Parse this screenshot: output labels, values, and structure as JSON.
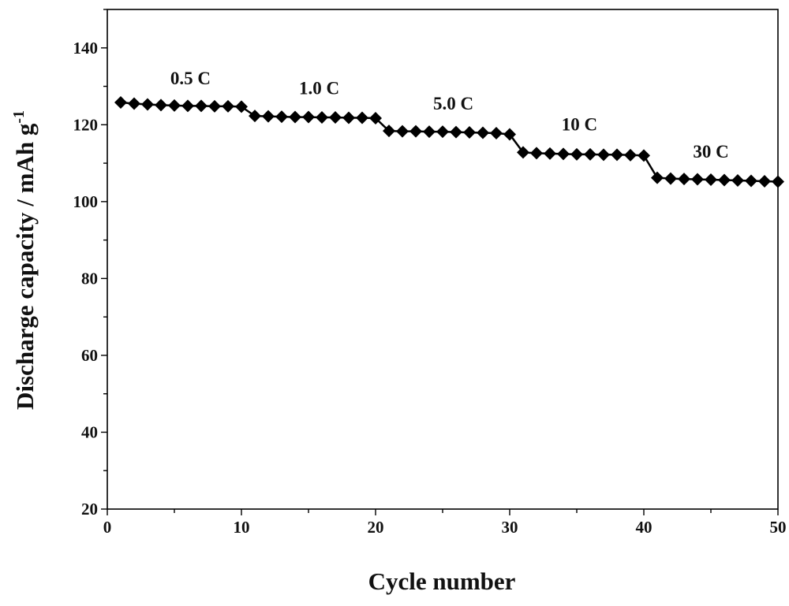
{
  "chart_data": {
    "type": "line",
    "xlabel": "Cycle number",
    "ylabel_main": "Discharge capacity / mAh g",
    "ylabel_sup": "-1",
    "xlim": [
      0,
      50
    ],
    "ylim": [
      20,
      150
    ],
    "xticks": [
      0,
      10,
      20,
      30,
      40,
      50
    ],
    "yticks": [
      20,
      40,
      60,
      80,
      100,
      120,
      140
    ],
    "marker": "diamond",
    "color": "#000000",
    "grid": false,
    "x": [
      1,
      2,
      3,
      4,
      5,
      6,
      7,
      8,
      9,
      10,
      11,
      12,
      13,
      14,
      15,
      16,
      17,
      18,
      19,
      20,
      21,
      22,
      23,
      24,
      25,
      26,
      27,
      28,
      29,
      30,
      31,
      32,
      33,
      34,
      35,
      36,
      37,
      38,
      39,
      40,
      41,
      42,
      43,
      44,
      45,
      46,
      47,
      48,
      49,
      50
    ],
    "y": [
      125.8,
      125.5,
      125.3,
      125.1,
      125.0,
      124.9,
      124.9,
      124.8,
      124.8,
      124.7,
      122.3,
      122.2,
      122.1,
      122.0,
      122.0,
      121.9,
      121.9,
      121.8,
      121.8,
      121.7,
      118.4,
      118.3,
      118.3,
      118.2,
      118.2,
      118.1,
      118.0,
      117.9,
      117.8,
      117.5,
      112.8,
      112.6,
      112.5,
      112.4,
      112.3,
      112.3,
      112.2,
      112.2,
      112.1,
      112.0,
      106.2,
      106.0,
      105.9,
      105.8,
      105.7,
      105.6,
      105.5,
      105.4,
      105.3,
      105.2
    ],
    "annotations": [
      {
        "text": "0.5 C",
        "x": 6.2,
        "y": 130.5
      },
      {
        "text": "1.0 C",
        "x": 15.8,
        "y": 128.0
      },
      {
        "text": "5.0 C",
        "x": 25.8,
        "y": 124.0
      },
      {
        "text": "10 C",
        "x": 35.2,
        "y": 118.5
      },
      {
        "text": "30 C",
        "x": 45.0,
        "y": 111.5
      }
    ]
  }
}
